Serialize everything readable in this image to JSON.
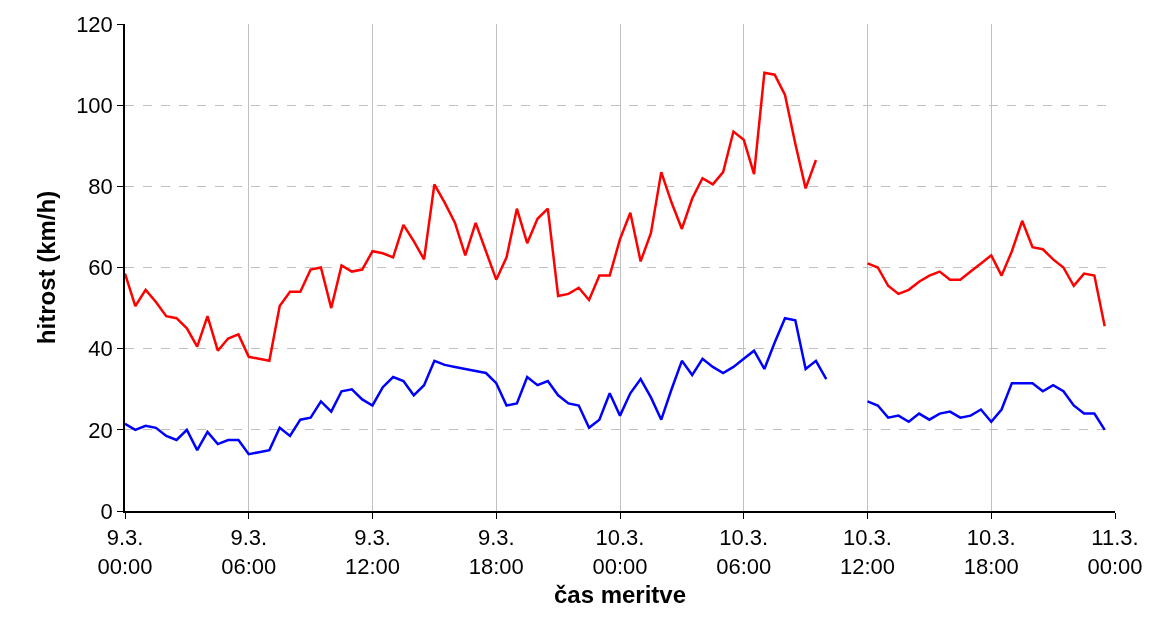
{
  "chart_data": {
    "type": "line",
    "xlabel": "čas meritve",
    "ylabel": "hitrost (km/h)",
    "x": [
      "--03-09T00:00",
      "--03-09T00:30",
      "--03-09T01:00",
      "--03-09T01:30",
      "--03-09T02:00",
      "--03-09T02:30",
      "--03-09T03:00",
      "--03-09T03:30",
      "--03-09T04:00",
      "--03-09T04:30",
      "--03-09T05:00",
      "--03-09T05:30",
      "--03-09T06:00",
      "--03-09T06:30",
      "--03-09T07:00",
      "--03-09T07:30",
      "--03-09T08:00",
      "--03-09T08:30",
      "--03-09T09:00",
      "--03-09T09:30",
      "--03-09T10:00",
      "--03-09T10:30",
      "--03-09T11:00",
      "--03-09T11:30",
      "--03-09T12:00",
      "--03-09T12:30",
      "--03-09T13:00",
      "--03-09T13:30",
      "--03-09T14:00",
      "--03-09T14:30",
      "--03-09T15:00",
      "--03-09T15:30",
      "--03-09T16:00",
      "--03-09T16:30",
      "--03-09T17:00",
      "--03-09T17:30",
      "--03-09T18:00",
      "--03-09T18:30",
      "--03-09T19:00",
      "--03-09T19:30",
      "--03-09T20:00",
      "--03-09T20:30",
      "--03-09T21:00",
      "--03-09T21:30",
      "--03-09T22:00",
      "--03-09T22:30",
      "--03-09T23:00",
      "--03-09T23:30",
      "--03-10T00:00",
      "--03-10T00:30",
      "--03-10T01:00",
      "--03-10T01:30",
      "--03-10T02:00",
      "--03-10T02:30",
      "--03-10T03:00",
      "--03-10T03:30",
      "--03-10T04:00",
      "--03-10T04:30",
      "--03-10T05:00",
      "--03-10T05:30",
      "--03-10T06:00",
      "--03-10T06:30",
      "--03-10T07:00",
      "--03-10T07:30",
      "--03-10T08:00",
      "--03-10T08:30",
      "--03-10T09:00",
      "--03-10T09:30",
      "--03-10T10:00",
      "--03-10T10:30",
      "--03-10T11:00",
      "--03-10T11:30",
      "--03-10T12:00",
      "--03-10T12:30",
      "--03-10T13:00",
      "--03-10T13:30",
      "--03-10T14:00",
      "--03-10T14:30",
      "--03-10T15:00",
      "--03-10T15:30",
      "--03-10T16:00",
      "--03-10T16:30",
      "--03-10T17:00",
      "--03-10T17:30",
      "--03-10T18:00",
      "--03-10T18:30",
      "--03-10T19:00",
      "--03-10T19:30",
      "--03-10T20:00",
      "--03-10T20:30",
      "--03-10T21:00",
      "--03-10T21:30",
      "--03-10T22:00",
      "--03-10T22:30",
      "--03-10T23:00",
      "--03-10T23:30"
    ],
    "series": [
      {
        "color": "#ff0000",
        "values": [
          58.5,
          50.5,
          54.5,
          51.5,
          48,
          47.5,
          45,
          40.5,
          48,
          39.5,
          42.5,
          43.5,
          38,
          37.5,
          37,
          50.5,
          54,
          54,
          59.5,
          60,
          50,
          60.5,
          59,
          59.5,
          64,
          63.5,
          62.5,
          70.5,
          66.5,
          62,
          80.5,
          76,
          71,
          63,
          71,
          64,
          57,
          62.5,
          74.5,
          66,
          72,
          74.5,
          53,
          53.5,
          55,
          52,
          58,
          58,
          67,
          73.5,
          61.5,
          68.5,
          83.5,
          76,
          69.5,
          77,
          82,
          80.5,
          83.5,
          93.5,
          91.5,
          83,
          108,
          107.5,
          102.5,
          90.5,
          79.5,
          86.5,
          null,
          null,
          null,
          null,
          61,
          60,
          55.5,
          53.5,
          54.5,
          56.5,
          58,
          59,
          57,
          57,
          59,
          61,
          63,
          58,
          64,
          71.5,
          65,
          64.5,
          62,
          60,
          55.5,
          58.5,
          58,
          45.5
        ]
      },
      {
        "color": "#0000ff",
        "values": [
          21.5,
          20,
          21,
          20.5,
          18.5,
          17.5,
          20,
          15,
          19.5,
          16.5,
          17.5,
          17.5,
          14,
          14.5,
          15,
          20.5,
          18.5,
          22.5,
          23,
          27,
          24.5,
          29.5,
          30,
          27.5,
          26,
          30.5,
          33,
          32,
          28.5,
          31,
          37,
          36,
          35.5,
          35,
          34.5,
          34,
          31.5,
          26,
          26.5,
          33,
          31,
          32,
          28.5,
          26.5,
          26,
          20.5,
          22.5,
          29,
          23.5,
          29,
          32.5,
          28,
          22.5,
          30,
          37,
          33.5,
          37.5,
          35.5,
          34,
          35.5,
          37.5,
          39.5,
          35,
          41.5,
          47.5,
          47,
          35,
          37,
          32.5,
          null,
          null,
          null,
          27,
          26,
          23,
          23.5,
          22,
          24,
          22.5,
          24,
          24.5,
          23,
          23.5,
          25,
          22,
          25,
          31.5,
          31.5,
          31.5,
          29.5,
          31,
          29.5,
          26,
          24,
          24,
          20
        ]
      }
    ],
    "xlim": [
      "--03-09T00:00",
      "--03-11T00:00"
    ],
    "xticks": [
      {
        "value": "--03-09T00:00",
        "label": "9.3.\n00:00"
      },
      {
        "value": "--03-09T06:00",
        "label": "9.3.\n06:00"
      },
      {
        "value": "--03-09T12:00",
        "label": "9.3.\n12:00"
      },
      {
        "value": "--03-09T18:00",
        "label": "9.3.\n18:00"
      },
      {
        "value": "--03-10T00:00",
        "label": "10.3.\n00:00"
      },
      {
        "value": "--03-10T06:00",
        "label": "10.3.\n06:00"
      },
      {
        "value": "--03-10T12:00",
        "label": "10.3.\n12:00"
      },
      {
        "value": "--03-10T18:00",
        "label": "10.3.\n18:00"
      },
      {
        "value": "--03-11T00:00",
        "label": "11.3.\n00:00"
      }
    ],
    "ylim": [
      0,
      120
    ],
    "yticks": [
      0,
      20,
      40,
      60,
      80,
      100,
      120
    ],
    "grid": true,
    "marker": "none",
    "line_style": "solid"
  }
}
